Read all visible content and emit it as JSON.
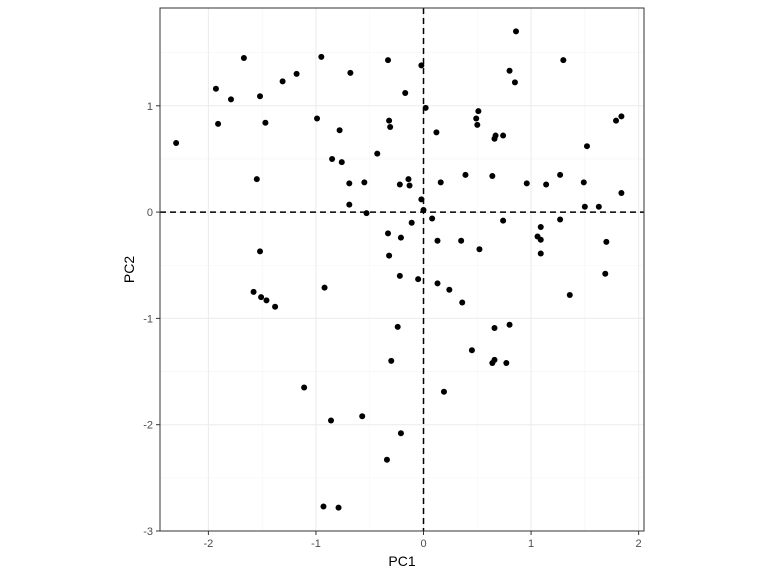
{
  "chart_data": {
    "type": "scatter",
    "title": "",
    "xlabel": "PC1",
    "ylabel": "PC2",
    "xlim": [
      -2.45,
      2.05
    ],
    "ylim": [
      -3.0,
      1.92
    ],
    "xticks": [
      -2,
      -1,
      0,
      1,
      2
    ],
    "yticks": [
      -3,
      -2,
      -1,
      0,
      1
    ],
    "xtick_labels": [
      "-2",
      "-1",
      "0",
      "1",
      "2"
    ],
    "ytick_labels": [
      "-3",
      "-2",
      "-1",
      "0",
      "1"
    ],
    "grid": true,
    "reference_lines": {
      "x": 0,
      "y": 0,
      "style": "dashed"
    },
    "colors": {
      "point": "#000000",
      "panel_border": "#333333",
      "grid_major": "#ebebeb",
      "grid_minor": "#f5f5f5",
      "tick_text": "#4d4d4d"
    },
    "points": [
      {
        "x": -2.3,
        "y": 0.65
      },
      {
        "x": -1.93,
        "y": 1.16
      },
      {
        "x": -1.91,
        "y": 0.83
      },
      {
        "x": -1.79,
        "y": 1.06
      },
      {
        "x": -1.67,
        "y": 1.45
      },
      {
        "x": -1.52,
        "y": 1.09
      },
      {
        "x": -1.47,
        "y": 0.84
      },
      {
        "x": -1.31,
        "y": 1.23
      },
      {
        "x": -1.18,
        "y": 1.3
      },
      {
        "x": -1.55,
        "y": 0.31
      },
      {
        "x": -1.52,
        "y": -0.37
      },
      {
        "x": -1.58,
        "y": -0.75
      },
      {
        "x": -1.51,
        "y": -0.8
      },
      {
        "x": -1.46,
        "y": -0.83
      },
      {
        "x": -1.38,
        "y": -0.89
      },
      {
        "x": -0.95,
        "y": 1.46
      },
      {
        "x": -0.99,
        "y": 0.88
      },
      {
        "x": -0.92,
        "y": -0.71
      },
      {
        "x": -0.85,
        "y": 0.5
      },
      {
        "x": -0.78,
        "y": 0.77
      },
      {
        "x": -0.76,
        "y": 0.47
      },
      {
        "x": -0.68,
        "y": 1.31
      },
      {
        "x": -0.69,
        "y": 0.27
      },
      {
        "x": -0.69,
        "y": 0.07
      },
      {
        "x": -0.55,
        "y": 0.28
      },
      {
        "x": -0.53,
        "y": -0.01
      },
      {
        "x": -0.43,
        "y": 0.55
      },
      {
        "x": -0.33,
        "y": 1.43
      },
      {
        "x": -0.32,
        "y": 0.86
      },
      {
        "x": -0.31,
        "y": 0.8
      },
      {
        "x": -0.22,
        "y": 0.26
      },
      {
        "x": -0.14,
        "y": 0.31
      },
      {
        "x": -0.13,
        "y": 0.25
      },
      {
        "x": -0.17,
        "y": 1.12
      },
      {
        "x": -0.02,
        "y": 1.38
      },
      {
        "x": 0.02,
        "y": 0.98
      },
      {
        "x": -0.02,
        "y": 0.12
      },
      {
        "x": 0.0,
        "y": 0.02
      },
      {
        "x": 0.08,
        "y": -0.06
      },
      {
        "x": -0.11,
        "y": -0.1
      },
      {
        "x": -0.33,
        "y": -0.2
      },
      {
        "x": -0.21,
        "y": -0.24
      },
      {
        "x": -0.32,
        "y": -0.41
      },
      {
        "x": -0.22,
        "y": -0.6
      },
      {
        "x": -0.05,
        "y": -0.63
      },
      {
        "x": -0.24,
        "y": -1.08
      },
      {
        "x": -0.3,
        "y": -1.4
      },
      {
        "x": 0.12,
        "y": 0.75
      },
      {
        "x": 0.16,
        "y": 0.28
      },
      {
        "x": 0.13,
        "y": -0.27
      },
      {
        "x": 0.13,
        "y": -0.67
      },
      {
        "x": 0.24,
        "y": -0.73
      },
      {
        "x": 0.35,
        "y": -0.27
      },
      {
        "x": 0.36,
        "y": -0.85
      },
      {
        "x": 0.39,
        "y": 0.35
      },
      {
        "x": 0.49,
        "y": 0.88
      },
      {
        "x": 0.51,
        "y": 0.95
      },
      {
        "x": 0.5,
        "y": 0.82
      },
      {
        "x": 0.52,
        "y": -0.35
      },
      {
        "x": 0.45,
        "y": -1.3
      },
      {
        "x": 0.19,
        "y": -1.69
      },
      {
        "x": 0.64,
        "y": 0.34
      },
      {
        "x": 0.67,
        "y": 0.72
      },
      {
        "x": 0.66,
        "y": 0.69
      },
      {
        "x": 0.74,
        "y": 0.72
      },
      {
        "x": 0.74,
        "y": -0.08
      },
      {
        "x": 0.8,
        "y": 1.33
      },
      {
        "x": 0.85,
        "y": 1.22
      },
      {
        "x": 0.86,
        "y": 1.7
      },
      {
        "x": 0.66,
        "y": -1.09
      },
      {
        "x": 0.8,
        "y": -1.06
      },
      {
        "x": 0.66,
        "y": -1.39
      },
      {
        "x": 0.64,
        "y": -1.42
      },
      {
        "x": 0.77,
        "y": -1.42
      },
      {
        "x": 0.96,
        "y": 0.27
      },
      {
        "x": 1.06,
        "y": -0.23
      },
      {
        "x": 1.09,
        "y": -0.26
      },
      {
        "x": 1.09,
        "y": -0.14
      },
      {
        "x": 1.09,
        "y": -0.39
      },
      {
        "x": 1.14,
        "y": 0.26
      },
      {
        "x": 1.27,
        "y": 0.35
      },
      {
        "x": 1.27,
        "y": -0.07
      },
      {
        "x": 1.3,
        "y": 1.43
      },
      {
        "x": 1.36,
        "y": -0.78
      },
      {
        "x": 1.49,
        "y": 0.28
      },
      {
        "x": 1.5,
        "y": 0.05
      },
      {
        "x": 1.52,
        "y": 0.62
      },
      {
        "x": 1.63,
        "y": 0.05
      },
      {
        "x": 1.7,
        "y": -0.28
      },
      {
        "x": 1.69,
        "y": -0.58
      },
      {
        "x": 1.79,
        "y": 0.86
      },
      {
        "x": 1.84,
        "y": 0.9
      },
      {
        "x": 1.84,
        "y": 0.18
      },
      {
        "x": -1.11,
        "y": -1.65
      },
      {
        "x": -0.86,
        "y": -1.96
      },
      {
        "x": -0.57,
        "y": -1.92
      },
      {
        "x": -0.21,
        "y": -2.08
      },
      {
        "x": -0.34,
        "y": -2.33
      },
      {
        "x": -0.93,
        "y": -2.77
      },
      {
        "x": -0.79,
        "y": -2.78
      }
    ]
  }
}
